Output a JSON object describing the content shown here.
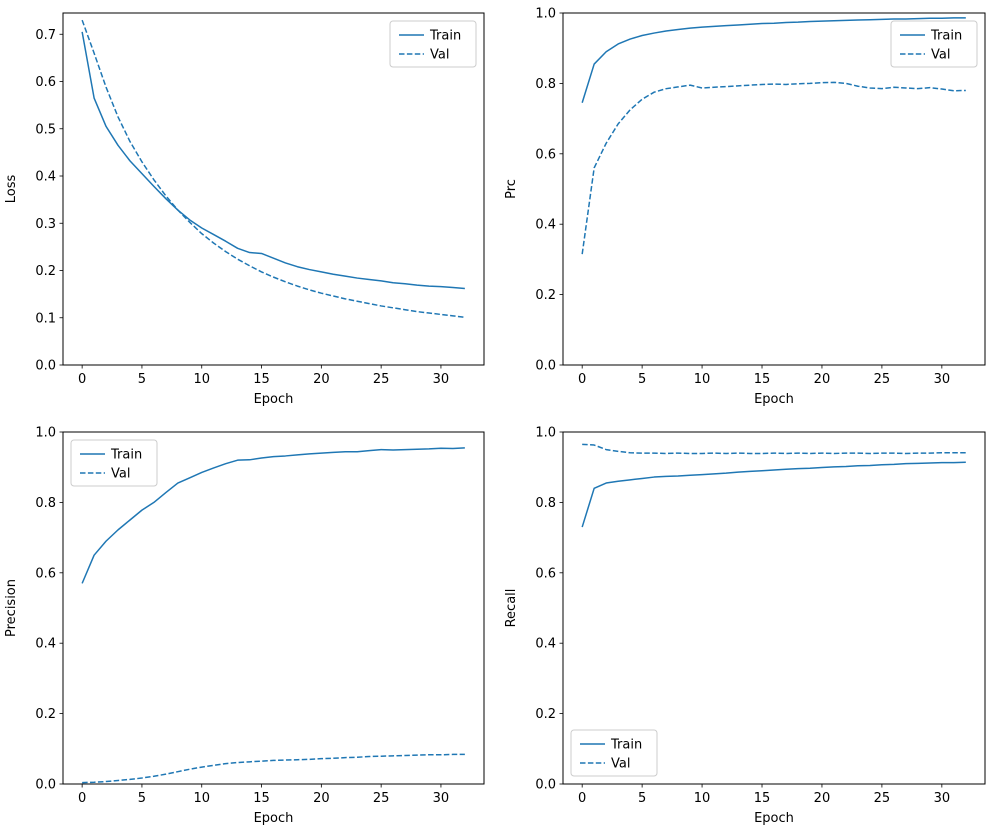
{
  "figure": {
    "background": "#ffffff",
    "accent": "#1f77b4",
    "spine_color": "#000000",
    "legend_border_color": "#cccccc"
  },
  "chart_data": [
    {
      "type": "line",
      "title": "",
      "xlabel": "Epoch",
      "ylabel": "Loss",
      "xlim": [
        -1.6,
        33.6
      ],
      "ylim": [
        0,
        0.745
      ],
      "xticks": [
        0,
        5,
        10,
        15,
        20,
        25,
        30
      ],
      "yticks": [
        0.0,
        0.1,
        0.2,
        0.3,
        0.4,
        0.5,
        0.6,
        0.7
      ],
      "ytick_decimals": 1,
      "grid": false,
      "legend": {
        "position": "upper-right",
        "entries": [
          "Train",
          "Val"
        ]
      },
      "x": [
        0,
        1,
        2,
        3,
        4,
        5,
        6,
        7,
        8,
        9,
        10,
        11,
        12,
        13,
        14,
        15,
        16,
        17,
        18,
        19,
        20,
        21,
        22,
        23,
        24,
        25,
        26,
        27,
        28,
        29,
        30,
        31,
        32
      ],
      "series": [
        {
          "name": "Train",
          "style": "solid",
          "color": "#1f77b4",
          "values": [
            0.705,
            0.565,
            0.505,
            0.465,
            0.432,
            0.405,
            0.378,
            0.352,
            0.328,
            0.307,
            0.29,
            0.276,
            0.262,
            0.247,
            0.238,
            0.236,
            0.226,
            0.216,
            0.208,
            0.202,
            0.197,
            0.192,
            0.188,
            0.184,
            0.181,
            0.178,
            0.174,
            0.172,
            0.169,
            0.167,
            0.166,
            0.164,
            0.162
          ]
        },
        {
          "name": "Val",
          "style": "dashed",
          "color": "#1f77b4",
          "values": [
            0.73,
            0.66,
            0.588,
            0.525,
            0.473,
            0.43,
            0.392,
            0.358,
            0.328,
            0.302,
            0.278,
            0.258,
            0.24,
            0.224,
            0.21,
            0.197,
            0.186,
            0.176,
            0.167,
            0.159,
            0.152,
            0.146,
            0.14,
            0.135,
            0.13,
            0.125,
            0.121,
            0.117,
            0.113,
            0.11,
            0.107,
            0.104,
            0.101
          ]
        }
      ]
    },
    {
      "type": "line",
      "title": "",
      "xlabel": "Epoch",
      "ylabel": "Prc",
      "xlim": [
        -1.6,
        33.6
      ],
      "ylim": [
        0,
        1.0
      ],
      "xticks": [
        0,
        5,
        10,
        15,
        20,
        25,
        30
      ],
      "yticks": [
        0.0,
        0.2,
        0.4,
        0.6,
        0.8,
        1.0
      ],
      "ytick_decimals": 1,
      "grid": false,
      "legend": {
        "position": "upper-right",
        "entries": [
          "Train",
          "Val"
        ]
      },
      "x": [
        0,
        1,
        2,
        3,
        4,
        5,
        6,
        7,
        8,
        9,
        10,
        11,
        12,
        13,
        14,
        15,
        16,
        17,
        18,
        19,
        20,
        21,
        22,
        23,
        24,
        25,
        26,
        27,
        28,
        29,
        30,
        31,
        32
      ],
      "series": [
        {
          "name": "Train",
          "style": "solid",
          "color": "#1f77b4",
          "values": [
            0.745,
            0.855,
            0.89,
            0.912,
            0.926,
            0.936,
            0.943,
            0.949,
            0.953,
            0.957,
            0.96,
            0.962,
            0.964,
            0.966,
            0.968,
            0.97,
            0.971,
            0.973,
            0.974,
            0.976,
            0.977,
            0.978,
            0.979,
            0.98,
            0.981,
            0.982,
            0.983,
            0.983,
            0.984,
            0.985,
            0.985,
            0.986,
            0.986
          ]
        },
        {
          "name": "Val",
          "style": "dashed",
          "color": "#1f77b4",
          "values": [
            0.315,
            0.56,
            0.63,
            0.685,
            0.725,
            0.755,
            0.775,
            0.785,
            0.79,
            0.795,
            0.787,
            0.789,
            0.791,
            0.793,
            0.795,
            0.797,
            0.798,
            0.797,
            0.799,
            0.8,
            0.802,
            0.803,
            0.8,
            0.792,
            0.787,
            0.785,
            0.789,
            0.787,
            0.785,
            0.788,
            0.784,
            0.779,
            0.78
          ]
        }
      ]
    },
    {
      "type": "line",
      "title": "",
      "xlabel": "Epoch",
      "ylabel": "Precision",
      "xlim": [
        -1.6,
        33.6
      ],
      "ylim": [
        0,
        1.0
      ],
      "xticks": [
        0,
        5,
        10,
        15,
        20,
        25,
        30
      ],
      "yticks": [
        0.0,
        0.2,
        0.4,
        0.6,
        0.8,
        1.0
      ],
      "ytick_decimals": 1,
      "grid": false,
      "legend": {
        "position": "upper-left",
        "entries": [
          "Train",
          "Val"
        ]
      },
      "x": [
        0,
        1,
        2,
        3,
        4,
        5,
        6,
        7,
        8,
        9,
        10,
        11,
        12,
        13,
        14,
        15,
        16,
        17,
        18,
        19,
        20,
        21,
        22,
        23,
        24,
        25,
        26,
        27,
        28,
        29,
        30,
        31,
        32
      ],
      "series": [
        {
          "name": "Train",
          "style": "solid",
          "color": "#1f77b4",
          "values": [
            0.57,
            0.65,
            0.69,
            0.722,
            0.75,
            0.778,
            0.8,
            0.828,
            0.855,
            0.87,
            0.885,
            0.898,
            0.91,
            0.92,
            0.921,
            0.926,
            0.93,
            0.932,
            0.935,
            0.938,
            0.94,
            0.942,
            0.944,
            0.944,
            0.947,
            0.95,
            0.949,
            0.95,
            0.951,
            0.952,
            0.954,
            0.953,
            0.955
          ]
        },
        {
          "name": "Val",
          "style": "dashed",
          "color": "#1f77b4",
          "values": [
            0.004,
            0.005,
            0.007,
            0.01,
            0.013,
            0.017,
            0.022,
            0.028,
            0.035,
            0.042,
            0.048,
            0.053,
            0.058,
            0.061,
            0.063,
            0.065,
            0.067,
            0.068,
            0.069,
            0.07,
            0.072,
            0.073,
            0.075,
            0.076,
            0.078,
            0.079,
            0.08,
            0.081,
            0.082,
            0.083,
            0.083,
            0.084,
            0.084
          ]
        }
      ]
    },
    {
      "type": "line",
      "title": "",
      "xlabel": "Epoch",
      "ylabel": "Recall",
      "xlim": [
        -1.6,
        33.6
      ],
      "ylim": [
        0,
        1.0
      ],
      "xticks": [
        0,
        5,
        10,
        15,
        20,
        25,
        30
      ],
      "yticks": [
        0.0,
        0.2,
        0.4,
        0.6,
        0.8,
        1.0
      ],
      "ytick_decimals": 1,
      "grid": false,
      "legend": {
        "position": "lower-left",
        "entries": [
          "Train",
          "Val"
        ]
      },
      "x": [
        0,
        1,
        2,
        3,
        4,
        5,
        6,
        7,
        8,
        9,
        10,
        11,
        12,
        13,
        14,
        15,
        16,
        17,
        18,
        19,
        20,
        21,
        22,
        23,
        24,
        25,
        26,
        27,
        28,
        29,
        30,
        31,
        32
      ],
      "series": [
        {
          "name": "Train",
          "style": "solid",
          "color": "#1f77b4",
          "values": [
            0.73,
            0.84,
            0.855,
            0.86,
            0.864,
            0.868,
            0.872,
            0.874,
            0.875,
            0.877,
            0.879,
            0.881,
            0.883,
            0.886,
            0.888,
            0.89,
            0.892,
            0.894,
            0.896,
            0.897,
            0.899,
            0.901,
            0.902,
            0.904,
            0.905,
            0.907,
            0.908,
            0.91,
            0.911,
            0.912,
            0.913,
            0.913,
            0.914
          ]
        },
        {
          "name": "Val",
          "style": "dashed",
          "color": "#1f77b4",
          "values": [
            0.965,
            0.963,
            0.95,
            0.945,
            0.941,
            0.94,
            0.94,
            0.939,
            0.94,
            0.939,
            0.939,
            0.94,
            0.939,
            0.94,
            0.939,
            0.939,
            0.94,
            0.939,
            0.94,
            0.939,
            0.94,
            0.939,
            0.94,
            0.94,
            0.939,
            0.94,
            0.94,
            0.939,
            0.94,
            0.94,
            0.941,
            0.941,
            0.941
          ]
        }
      ]
    }
  ]
}
